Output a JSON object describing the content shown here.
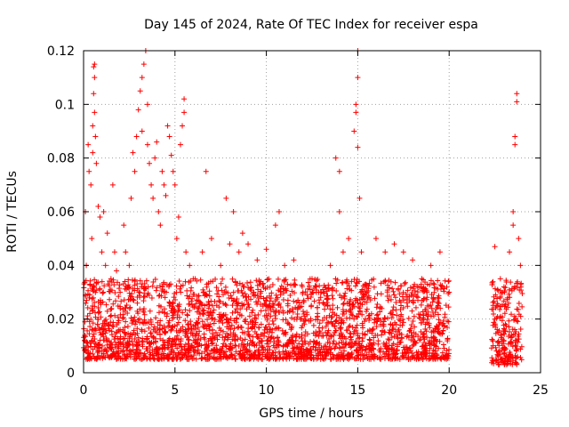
{
  "chart_data": {
    "type": "scatter",
    "title": "Day 145 of 2024, Rate Of TEC Index for receiver espa",
    "xlabel": "GPS time / hours",
    "ylabel": "ROTI / TECUs",
    "xlim": [
      0,
      25
    ],
    "ylim": [
      0,
      0.12
    ],
    "xticks": [
      0,
      5,
      10,
      15,
      20,
      25
    ],
    "xtick_labels": [
      "0",
      "5",
      "10",
      "15",
      "20",
      "25"
    ],
    "yticks": [
      0,
      0.02,
      0.04,
      0.06,
      0.08,
      0.1,
      0.12
    ],
    "ytick_labels": [
      "0",
      "0.02",
      "0.04",
      "0.06",
      "0.08",
      "0.1",
      "0.12"
    ],
    "grid": true,
    "marker": "plus",
    "color": "#ff0000",
    "series": [
      {
        "name": "ROTI",
        "points": [
          [
            0.05,
            0.012
          ],
          [
            0.1,
            0.06
          ],
          [
            0.15,
            0.04
          ],
          [
            0.2,
            0.02
          ],
          [
            0.25,
            0.085
          ],
          [
            0.3,
            0.075
          ],
          [
            0.35,
            0.033
          ],
          [
            0.4,
            0.07
          ],
          [
            0.45,
            0.05
          ],
          [
            0.5,
            0.092
          ],
          [
            0.5,
            0.082
          ],
          [
            0.55,
            0.104
          ],
          [
            0.55,
            0.114
          ],
          [
            0.6,
            0.11
          ],
          [
            0.6,
            0.115
          ],
          [
            0.6,
            0.097
          ],
          [
            0.65,
            0.088
          ],
          [
            0.7,
            0.078
          ],
          [
            0.8,
            0.062
          ],
          [
            0.9,
            0.058
          ],
          [
            1.0,
            0.045
          ],
          [
            1.1,
            0.06
          ],
          [
            1.2,
            0.04
          ],
          [
            1.3,
            0.052
          ],
          [
            1.5,
            0.035
          ],
          [
            1.6,
            0.07
          ],
          [
            1.7,
            0.045
          ],
          [
            1.8,
            0.038
          ],
          [
            2.0,
            0.03
          ],
          [
            2.2,
            0.055
          ],
          [
            2.3,
            0.045
          ],
          [
            2.5,
            0.04
          ],
          [
            2.6,
            0.065
          ],
          [
            2.7,
            0.082
          ],
          [
            2.8,
            0.075
          ],
          [
            2.9,
            0.088
          ],
          [
            3.0,
            0.098
          ],
          [
            3.1,
            0.105
          ],
          [
            3.2,
            0.09
          ],
          [
            3.2,
            0.11
          ],
          [
            3.3,
            0.115
          ],
          [
            3.4,
            0.12
          ],
          [
            3.5,
            0.1
          ],
          [
            3.5,
            0.085
          ],
          [
            3.6,
            0.078
          ],
          [
            3.7,
            0.07
          ],
          [
            3.8,
            0.065
          ],
          [
            3.9,
            0.08
          ],
          [
            4.0,
            0.086
          ],
          [
            4.1,
            0.06
          ],
          [
            4.2,
            0.055
          ],
          [
            4.3,
            0.075
          ],
          [
            4.4,
            0.07
          ],
          [
            4.5,
            0.066
          ],
          [
            4.6,
            0.092
          ],
          [
            4.7,
            0.088
          ],
          [
            4.8,
            0.081
          ],
          [
            4.9,
            0.075
          ],
          [
            5.0,
            0.07
          ],
          [
            5.1,
            0.05
          ],
          [
            5.2,
            0.058
          ],
          [
            5.3,
            0.085
          ],
          [
            5.5,
            0.102
          ],
          [
            5.5,
            0.097
          ],
          [
            5.4,
            0.092
          ],
          [
            5.6,
            0.045
          ],
          [
            5.8,
            0.04
          ],
          [
            6.0,
            0.035
          ],
          [
            6.5,
            0.045
          ],
          [
            6.7,
            0.075
          ],
          [
            7.0,
            0.05
          ],
          [
            7.5,
            0.04
          ],
          [
            7.8,
            0.065
          ],
          [
            8.0,
            0.048
          ],
          [
            8.2,
            0.06
          ],
          [
            8.5,
            0.045
          ],
          [
            8.7,
            0.052
          ],
          [
            9.0,
            0.048
          ],
          [
            9.5,
            0.042
          ],
          [
            10.0,
            0.046
          ],
          [
            10.5,
            0.055
          ],
          [
            10.7,
            0.06
          ],
          [
            11.0,
            0.04
          ],
          [
            11.5,
            0.042
          ],
          [
            12.0,
            0.03
          ],
          [
            12.5,
            0.035
          ],
          [
            13.0,
            0.03
          ],
          [
            13.5,
            0.04
          ],
          [
            13.8,
            0.08
          ],
          [
            14.0,
            0.075
          ],
          [
            14.0,
            0.06
          ],
          [
            14.2,
            0.045
          ],
          [
            14.5,
            0.05
          ],
          [
            14.8,
            0.09
          ],
          [
            14.9,
            0.1
          ],
          [
            14.9,
            0.097
          ],
          [
            15.0,
            0.12
          ],
          [
            15.0,
            0.11
          ],
          [
            15.0,
            0.084
          ],
          [
            15.1,
            0.065
          ],
          [
            15.2,
            0.045
          ],
          [
            15.5,
            0.03
          ],
          [
            16.0,
            0.05
          ],
          [
            16.5,
            0.045
          ],
          [
            17.0,
            0.048
          ],
          [
            17.5,
            0.045
          ],
          [
            18.0,
            0.042
          ],
          [
            18.5,
            0.035
          ],
          [
            19.0,
            0.04
          ],
          [
            19.5,
            0.045
          ],
          [
            20.0,
            0.03
          ],
          [
            22.5,
            0.047
          ],
          [
            22.8,
            0.035
          ],
          [
            23.0,
            0.032
          ],
          [
            23.3,
            0.045
          ],
          [
            23.5,
            0.06
          ],
          [
            23.5,
            0.055
          ],
          [
            23.6,
            0.088
          ],
          [
            23.6,
            0.085
          ],
          [
            23.7,
            0.104
          ],
          [
            23.7,
            0.101
          ],
          [
            23.8,
            0.05
          ],
          [
            23.9,
            0.04
          ]
        ]
      }
    ],
    "dense_bands": [
      {
        "x": [
          0.0,
          20.0
        ],
        "y": [
          0.005,
          0.035
        ]
      },
      {
        "x": [
          22.3,
          24.0
        ],
        "y": [
          0.003,
          0.035
        ]
      }
    ]
  }
}
